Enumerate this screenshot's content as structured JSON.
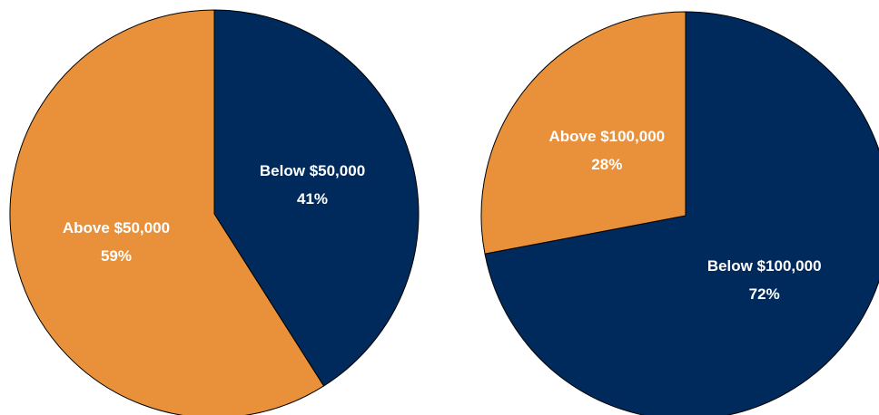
{
  "chart_data": [
    {
      "type": "pie",
      "categories": [
        "Below $50,000",
        "Above $50,000"
      ],
      "values": [
        41,
        59
      ],
      "value_labels": [
        "41%",
        "59%"
      ],
      "colors": [
        "#002a5c",
        "#e8903a"
      ]
    },
    {
      "type": "pie",
      "categories": [
        "Below $100,000",
        "Above $100,000"
      ],
      "values": [
        72,
        28
      ],
      "value_labels": [
        "72%",
        "28%"
      ],
      "colors": [
        "#002a5c",
        "#e8903a"
      ]
    }
  ]
}
